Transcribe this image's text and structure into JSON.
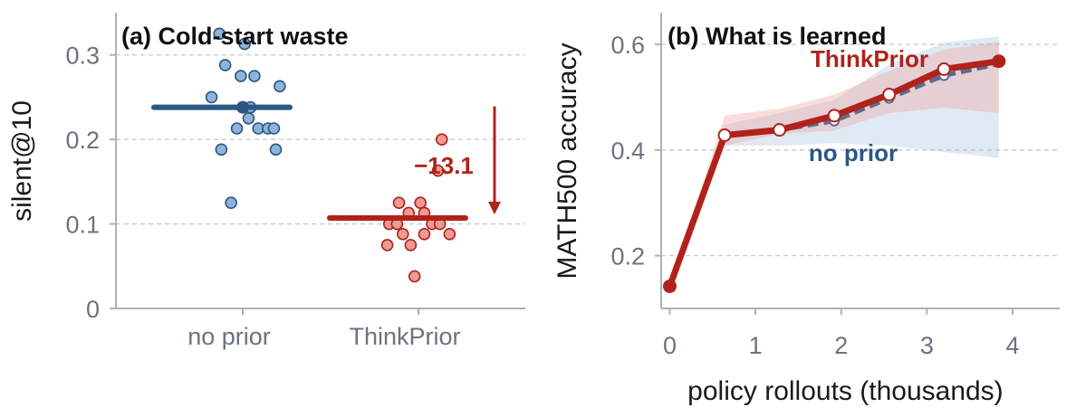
{
  "colors": {
    "no_prior": "#2a5783",
    "no_prior_fill": "#8fb4d9",
    "thinkprior": "#b0221b",
    "thinkprior_fill": "#ef9a92",
    "axis": "#aab2bb",
    "grid": "#c3c9d0",
    "tick_text": "#6b7380"
  },
  "chart_data": [
    {
      "type": "scatter",
      "title": "(a) Cold-start waste",
      "ylabel": "silent@10",
      "xlabel": "",
      "ylim": [
        0,
        0.35
      ],
      "yticks": [
        0,
        0.1,
        0.2,
        0.3
      ],
      "ytick_labels": [
        "0",
        "0.1",
        "0.2",
        "0.3"
      ],
      "categories": [
        "no prior",
        "ThinkPrior"
      ],
      "grid": "horizontal dashed",
      "series": [
        {
          "name": "no prior",
          "mean": 0.238,
          "points": [
            {
              "dx": -0.12,
              "y": 0.325
            },
            {
              "dx": 0.01,
              "y": 0.313
            },
            {
              "dx": -0.09,
              "y": 0.288
            },
            {
              "dx": -0.01,
              "y": 0.275
            },
            {
              "dx": 0.06,
              "y": 0.275
            },
            {
              "dx": 0.19,
              "y": 0.263
            },
            {
              "dx": -0.16,
              "y": 0.25
            },
            {
              "dx": 0.04,
              "y": 0.238
            },
            {
              "dx": 0.03,
              "y": 0.225
            },
            {
              "dx": -0.03,
              "y": 0.213
            },
            {
              "dx": 0.08,
              "y": 0.213
            },
            {
              "dx": 0.13,
              "y": 0.213
            },
            {
              "dx": 0.16,
              "y": 0.213
            },
            {
              "dx": -0.11,
              "y": 0.188
            },
            {
              "dx": 0.17,
              "y": 0.188
            },
            {
              "dx": -0.06,
              "y": 0.125
            }
          ]
        },
        {
          "name": "ThinkPrior",
          "mean": 0.107,
          "points": [
            {
              "dx": 0.12,
              "y": 0.2
            },
            {
              "dx": 0.1,
              "y": 0.163
            },
            {
              "dx": -0.1,
              "y": 0.125
            },
            {
              "dx": 0.01,
              "y": 0.125
            },
            {
              "dx": 0.03,
              "y": 0.113
            },
            {
              "dx": -0.05,
              "y": 0.113
            },
            {
              "dx": -0.15,
              "y": 0.1
            },
            {
              "dx": -0.11,
              "y": 0.1
            },
            {
              "dx": 0.07,
              "y": 0.1
            },
            {
              "dx": 0.11,
              "y": 0.1
            },
            {
              "dx": -0.08,
              "y": 0.088
            },
            {
              "dx": 0.03,
              "y": 0.088
            },
            {
              "dx": 0.16,
              "y": 0.088
            },
            {
              "dx": -0.16,
              "y": 0.075
            },
            {
              "dx": -0.04,
              "y": 0.075
            },
            {
              "dx": -0.02,
              "y": 0.038
            }
          ]
        }
      ],
      "annotation": {
        "text": "−13.1",
        "from": 0.238,
        "to": 0.107
      }
    },
    {
      "type": "line",
      "title": "(b) What is learned",
      "xlabel": "policy rollouts (thousands)",
      "ylabel": "MATH500 accuracy",
      "xlim": [
        -0.1,
        4.55
      ],
      "ylim": [
        0.1,
        0.66
      ],
      "xticks": [
        0,
        1,
        2,
        3,
        4
      ],
      "xtick_labels": [
        "0",
        "1",
        "2",
        "3",
        "4"
      ],
      "yticks": [
        0.2,
        0.4,
        0.6
      ],
      "ytick_labels": [
        "0.2",
        "0.4",
        "0.6"
      ],
      "grid": "horizontal dashed",
      "series": [
        {
          "name": "no prior",
          "x": [
            0,
            0.64,
            1.28,
            1.92,
            2.56,
            3.2,
            3.84
          ],
          "y": [
            0.142,
            0.428,
            0.438,
            0.455,
            0.498,
            0.541,
            0.563
          ],
          "band_lower": [
            0.142,
            0.408,
            0.408,
            0.413,
            0.408,
            0.396,
            0.385
          ],
          "band_upper": [
            0.142,
            0.448,
            0.47,
            0.495,
            0.562,
            0.603,
            0.615
          ],
          "label_text": "no prior"
        },
        {
          "name": "ThinkPrior",
          "x": [
            0,
            0.64,
            1.28,
            1.92,
            2.56,
            3.2,
            3.84
          ],
          "y": [
            0.142,
            0.428,
            0.438,
            0.465,
            0.505,
            0.553,
            0.568
          ],
          "band_lower": [
            0.142,
            0.408,
            0.43,
            0.437,
            0.47,
            0.48,
            0.47
          ],
          "band_upper": [
            0.142,
            0.465,
            0.478,
            0.505,
            0.55,
            0.59,
            0.605
          ],
          "label_text": "ThinkPrior"
        }
      ]
    }
  ]
}
